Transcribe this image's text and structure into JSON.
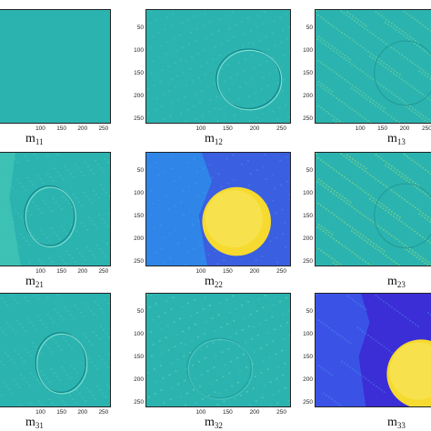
{
  "figure": {
    "panels": [
      {
        "id": "11",
        "caption": "m",
        "sub": "11",
        "variant": "flat",
        "show_yticks": false,
        "show_xticks": true
      },
      {
        "id": "12",
        "caption": "m",
        "sub": "12",
        "variant": "edge",
        "show_yticks": true,
        "show_xticks": true
      },
      {
        "id": "13",
        "caption": "m",
        "sub": "13",
        "variant": "noisy",
        "show_yticks": true,
        "show_xticks": true
      },
      {
        "id": "21",
        "caption": "m",
        "sub": "21",
        "variant": "edge-left",
        "show_yticks": false,
        "show_xticks": true
      },
      {
        "id": "22",
        "caption": "m",
        "sub": "22",
        "variant": "bright-coin",
        "show_yticks": true,
        "show_xticks": true
      },
      {
        "id": "23",
        "caption": "m",
        "sub": "23",
        "variant": "noisy-green",
        "show_yticks": true,
        "show_xticks": false
      },
      {
        "id": "31",
        "caption": "m",
        "sub": "31",
        "variant": "edge-center",
        "show_yticks": false,
        "show_xticks": true
      },
      {
        "id": "32",
        "caption": "m",
        "sub": "32",
        "variant": "faint",
        "show_yticks": true,
        "show_xticks": true
      },
      {
        "id": "33",
        "caption": "m",
        "sub": "33",
        "variant": "dark-coin",
        "show_yticks": true,
        "show_xticks": false
      }
    ],
    "y_ticks": [
      "50",
      "100",
      "150",
      "200",
      "250"
    ],
    "x_ticks": [
      "100",
      "150",
      "200",
      "250"
    ],
    "colors": {
      "base": "#2bb3b0",
      "blue": "#3a5fe0",
      "yellow": "#f2e23a",
      "deep": "#3b2ed6",
      "green": "#52c07a"
    }
  }
}
